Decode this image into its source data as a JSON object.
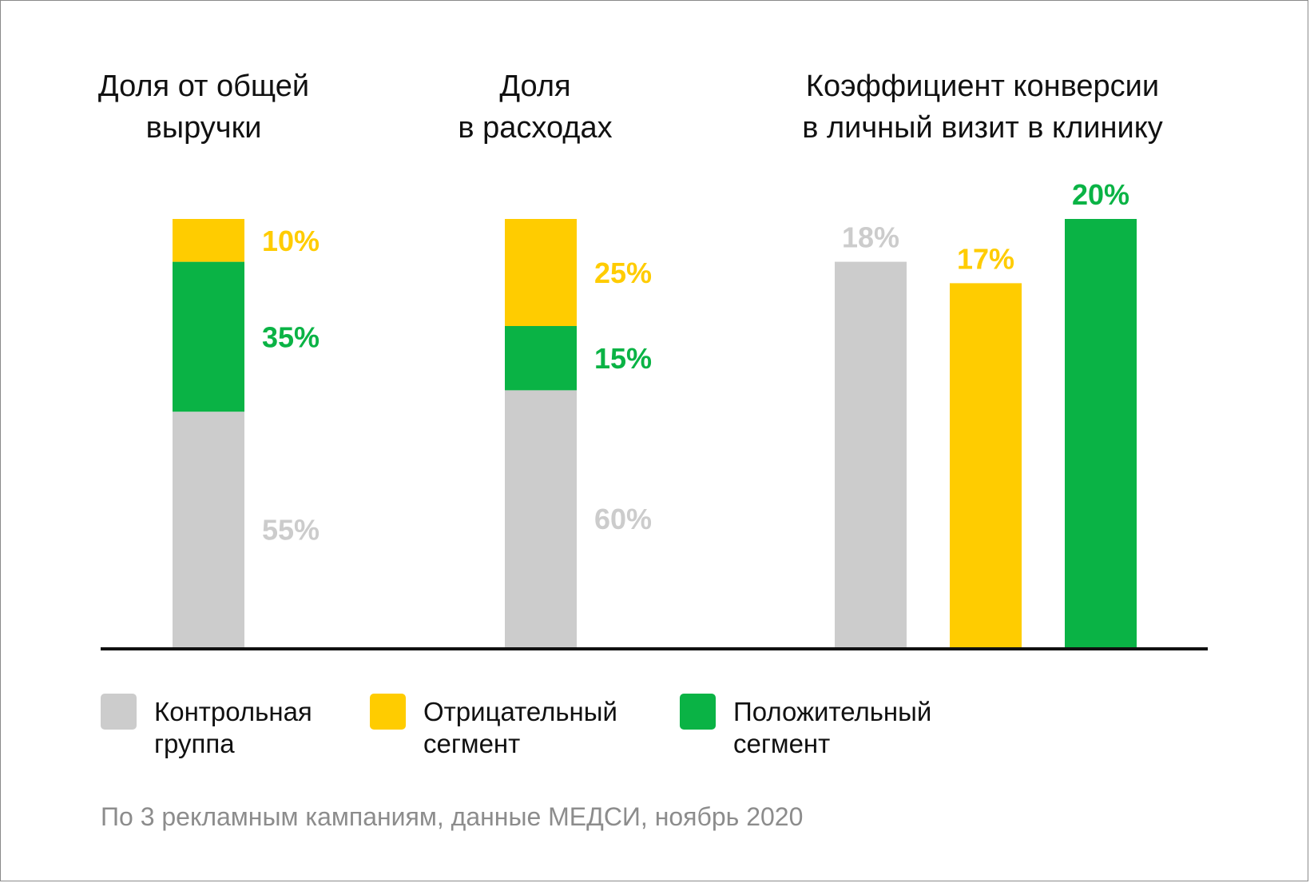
{
  "colors": {
    "control": "#cccccc",
    "negative": "#ffcc00",
    "positive": "#0ab345",
    "axis": "#111111"
  },
  "chart_data": [
    {
      "type": "bar",
      "stacked": true,
      "title": [
        "Доля от общей",
        "выручки"
      ],
      "unit": "%",
      "segments": [
        {
          "name": "Контрольная группа",
          "key": "control",
          "value": 55,
          "label": "55%"
        },
        {
          "name": "Положительный сегмент",
          "key": "positive",
          "value": 35,
          "label": "35%"
        },
        {
          "name": "Отрицательный сегмент",
          "key": "negative",
          "value": 10,
          "label": "10%"
        }
      ]
    },
    {
      "type": "bar",
      "stacked": true,
      "title": [
        "Доля",
        "в расходах"
      ],
      "unit": "%",
      "segments": [
        {
          "name": "Контрольная группа",
          "key": "control",
          "value": 60,
          "label": "60%"
        },
        {
          "name": "Положительный сегмент",
          "key": "positive",
          "value": 15,
          "label": "15%"
        },
        {
          "name": "Отрицательный сегмент",
          "key": "negative",
          "value": 25,
          "label": "25%"
        }
      ]
    },
    {
      "type": "bar",
      "stacked": false,
      "title": [
        "Коэффициент конверсии",
        "в личный визит в клинику"
      ],
      "unit": "%",
      "ylim": [
        0,
        20
      ],
      "categories": [
        "Контрольная группа",
        "Отрицательный сегмент",
        "Положительный сегмент"
      ],
      "bars": [
        {
          "key": "control",
          "value": 18,
          "label": "18%"
        },
        {
          "key": "negative",
          "value": 17,
          "label": "17%"
        },
        {
          "key": "positive",
          "value": 20,
          "label": "20%"
        }
      ]
    }
  ],
  "legend": [
    {
      "key": "control",
      "lines": [
        "Контрольная",
        "группа"
      ],
      "swatch_icon": "square-swatch"
    },
    {
      "key": "negative",
      "lines": [
        "Отрицательный",
        "сегмент"
      ],
      "swatch_icon": "square-swatch"
    },
    {
      "key": "positive",
      "lines": [
        "Положительный",
        "сегмент"
      ],
      "swatch_icon": "square-swatch"
    }
  ],
  "footnote": "По 3 рекламным кампаниям, данные МЕДСИ, ноябрь 2020"
}
